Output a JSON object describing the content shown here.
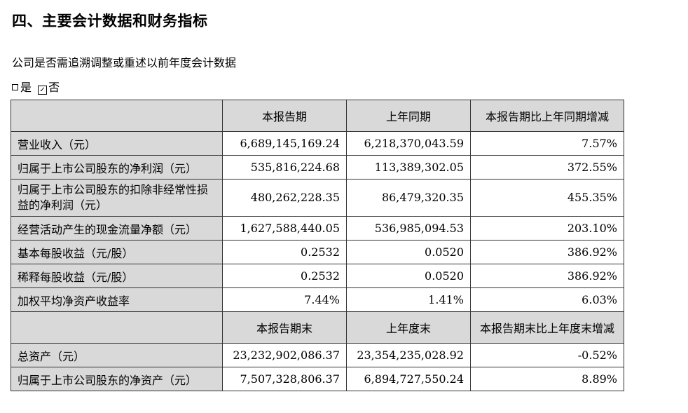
{
  "section_title": "四、主要会计数据和财务指标",
  "question": "公司是否需追溯调整或重述以前年度会计数据",
  "options": {
    "yes": "是",
    "no": "否",
    "selected": "否"
  },
  "table1": {
    "headers": [
      "",
      "本报告期",
      "上年同期",
      "本报告期比上年同期增减"
    ],
    "rows": [
      {
        "label": "营业收入（元）",
        "current": "6,689,145,169.24",
        "prior": "6,218,370,043.59",
        "change": "7.57%"
      },
      {
        "label": "归属于上市公司股东的净利润（元）",
        "current": "535,816,224.68",
        "prior": "113,389,302.05",
        "change": "372.55%"
      },
      {
        "label": "归属于上市公司股东的扣除非经常性损益的净利润（元）",
        "current": "480,262,228.35",
        "prior": "86,479,320.35",
        "change": "455.35%"
      },
      {
        "label": "经营活动产生的现金流量净额（元）",
        "current": "1,627,588,440.05",
        "prior": "536,985,094.53",
        "change": "203.10%"
      },
      {
        "label": "基本每股收益（元/股）",
        "current": "0.2532",
        "prior": "0.0520",
        "change": "386.92%"
      },
      {
        "label": "稀释每股收益（元/股）",
        "current": "0.2532",
        "prior": "0.0520",
        "change": "386.92%"
      },
      {
        "label": "加权平均净资产收益率",
        "current": "7.44%",
        "prior": "1.41%",
        "change": "6.03%"
      }
    ]
  },
  "table2": {
    "headers": [
      "",
      "本报告期末",
      "上年度末",
      "本报告期末比上年度末增减"
    ],
    "rows": [
      {
        "label": "总资产（元）",
        "current": "23,232,902,086.37",
        "prior": "23,354,235,028.92",
        "change": "-0.52%"
      },
      {
        "label": "归属于上市公司股东的净资产（元）",
        "current": "7,507,328,806.37",
        "prior": "6,894,727,550.24",
        "change": "8.89%"
      }
    ]
  }
}
